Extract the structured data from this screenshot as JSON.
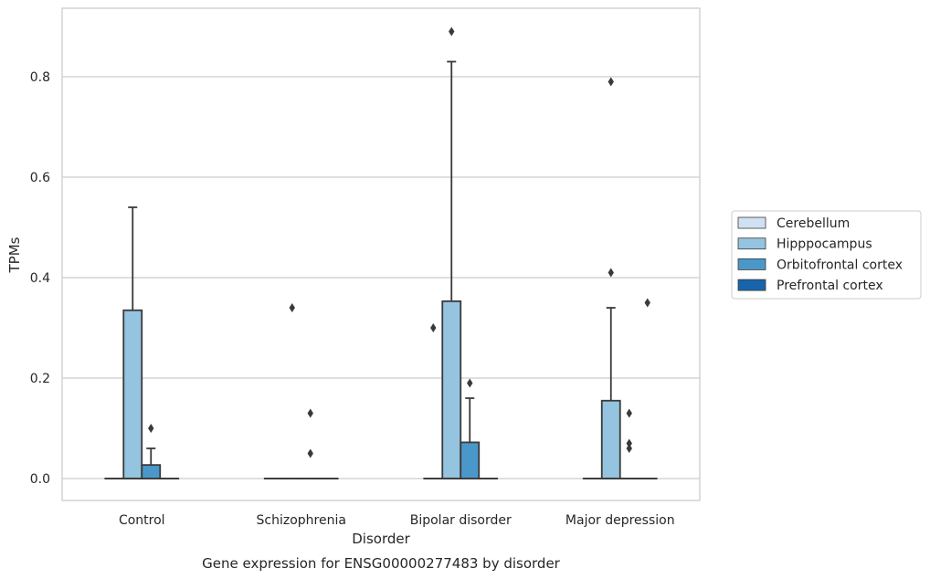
{
  "chart_data": {
    "type": "box",
    "title": "",
    "caption": "Gene expression for ENSG00000277483 by disorder",
    "xlabel": "Disorder",
    "ylabel": "TPMs",
    "ylim": [
      -0.045,
      0.935
    ],
    "yticks": [
      0.0,
      0.2,
      0.4,
      0.6,
      0.8
    ],
    "ytick_labels": [
      "0.0",
      "0.2",
      "0.4",
      "0.6",
      "0.8"
    ],
    "grid": "horizontal",
    "legend_position": "right",
    "categories": [
      "Control",
      "Schizophrenia",
      "Bipolar disorder",
      "Major depression"
    ],
    "series": [
      {
        "name": "Cerebellum",
        "color": "#d0e1f2",
        "boxes": [
          {
            "q1": 0,
            "median": 0,
            "q3": 0,
            "whisker_low": 0,
            "whisker_high": 0,
            "outliers": []
          },
          {
            "q1": 0,
            "median": 0,
            "q3": 0,
            "whisker_low": 0,
            "whisker_high": 0,
            "outliers": []
          },
          {
            "q1": 0,
            "median": 0,
            "q3": 0,
            "whisker_low": 0,
            "whisker_high": 0,
            "outliers": [
              0.3
            ]
          },
          {
            "q1": 0,
            "median": 0,
            "q3": 0,
            "whisker_low": 0,
            "whisker_high": 0,
            "outliers": []
          }
        ]
      },
      {
        "name": "Hipppocampus",
        "color": "#94c4df",
        "boxes": [
          {
            "q1": 0,
            "median": 0,
            "q3": 0.335,
            "whisker_low": 0,
            "whisker_high": 0.54,
            "outliers": []
          },
          {
            "q1": 0,
            "median": 0,
            "q3": 0,
            "whisker_low": 0,
            "whisker_high": 0,
            "outliers": [
              0.34
            ]
          },
          {
            "q1": 0,
            "median": 0,
            "q3": 0.353,
            "whisker_low": 0,
            "whisker_high": 0.83,
            "outliers": [
              0.89
            ]
          },
          {
            "q1": 0,
            "median": 0,
            "q3": 0.155,
            "whisker_low": 0,
            "whisker_high": 0.34,
            "outliers": [
              0.41,
              0.79
            ]
          }
        ]
      },
      {
        "name": "Orbitofrontal cortex",
        "color": "#4a98c9",
        "boxes": [
          {
            "q1": 0,
            "median": 0,
            "q3": 0.027,
            "whisker_low": 0,
            "whisker_high": 0.06,
            "outliers": [
              0.1
            ]
          },
          {
            "q1": 0,
            "median": 0,
            "q3": 0,
            "whisker_low": 0,
            "whisker_high": 0,
            "outliers": [
              0.05,
              0.13
            ]
          },
          {
            "q1": 0,
            "median": 0,
            "q3": 0.072,
            "whisker_low": 0,
            "whisker_high": 0.16,
            "outliers": [
              0.19
            ]
          },
          {
            "q1": 0,
            "median": 0,
            "q3": 0,
            "whisker_low": 0,
            "whisker_high": 0,
            "outliers": [
              0.06,
              0.07,
              0.13
            ]
          }
        ]
      },
      {
        "name": "Prefrontal cortex",
        "color": "#1764ab",
        "boxes": [
          {
            "q1": 0,
            "median": 0,
            "q3": 0,
            "whisker_low": 0,
            "whisker_high": 0,
            "outliers": []
          },
          {
            "q1": 0,
            "median": 0,
            "q3": 0,
            "whisker_low": 0,
            "whisker_high": 0,
            "outliers": []
          },
          {
            "q1": 0,
            "median": 0,
            "q3": 0,
            "whisker_low": 0,
            "whisker_high": 0,
            "outliers": []
          },
          {
            "q1": 0,
            "median": 0,
            "q3": 0,
            "whisker_low": 0,
            "whisker_high": 0,
            "outliers": [
              0.35
            ]
          }
        ]
      }
    ]
  }
}
